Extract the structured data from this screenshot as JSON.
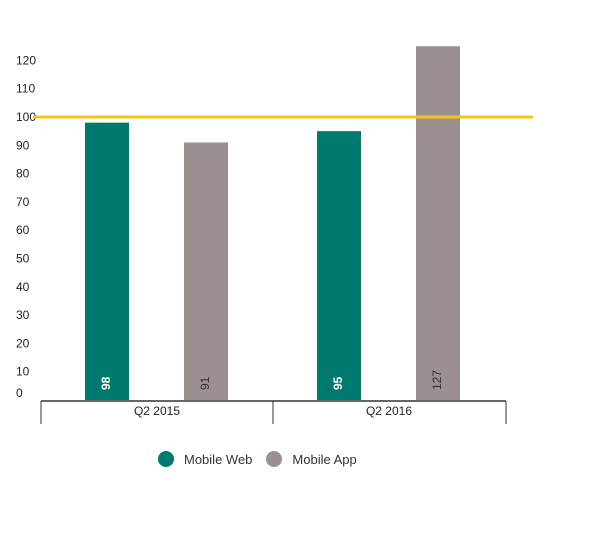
{
  "chart_data": {
    "type": "bar",
    "categories": [
      "Q2 2015",
      "Q2 2016"
    ],
    "series": [
      {
        "name": "Mobile Web",
        "values": [
          98,
          95
        ],
        "color": "#007a6e"
      },
      {
        "name": "Mobile App",
        "values": [
          91,
          127
        ],
        "color": "#9b9090"
      }
    ],
    "yticks": [
      "0",
      "10",
      "20",
      "30",
      "40",
      "50",
      "60",
      "70",
      "80",
      "90",
      "100",
      "110",
      "120"
    ],
    "ylim": [
      0,
      125
    ],
    "reference_line": {
      "value": 100,
      "color": "#f0c419"
    },
    "grid": false,
    "legend": "bottom"
  }
}
